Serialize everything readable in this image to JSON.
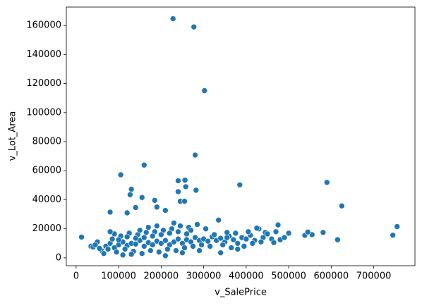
{
  "chart_data": {
    "type": "scatter",
    "xlabel": "v_SalePrice",
    "ylabel": "v_Lot_Area",
    "color": "#1f77b4",
    "xlim": [
      -23000,
      797000
    ],
    "ylim": [
      -5400,
      172700
    ],
    "xticks": [
      0,
      100000,
      200000,
      300000,
      400000,
      500000,
      600000,
      700000
    ],
    "yticks": [
      0,
      20000,
      40000,
      60000,
      80000,
      100000,
      120000,
      140000,
      160000
    ],
    "x": [
      228000,
      277000,
      302000,
      280000,
      160000,
      105000,
      590000,
      385000,
      256000,
      240000,
      258000,
      282000,
      240000,
      130000,
      127000,
      155000,
      185000,
      245000,
      255000,
      210000,
      140000,
      190000,
      625000,
      80000,
      120000,
      755000,
      745000,
      615000,
      581000,
      555000,
      538000,
      545000,
      500000,
      475000,
      470000,
      430000,
      445000,
      12789,
      35000,
      40000,
      60000,
      70000,
      80000,
      90000,
      100000,
      110000,
      120000,
      130000,
      140000,
      150000,
      160000,
      170000,
      180000,
      190000,
      200000,
      210000,
      220000,
      230000,
      240000,
      250000,
      260000,
      270000,
      280000,
      290000,
      300000,
      310000,
      320000,
      330000,
      340000,
      350000,
      360000,
      370000,
      380000,
      390000,
      400000,
      410000,
      420000,
      440000,
      460000,
      480000,
      50000,
      65000,
      75000,
      85000,
      95000,
      105000,
      115000,
      125000,
      135000,
      145000,
      155000,
      165000,
      175000,
      185000,
      195000,
      205000,
      215000,
      225000,
      235000,
      245000,
      255000,
      265000,
      275000,
      285000,
      295000,
      305000,
      315000,
      325000,
      335000,
      345000,
      355000,
      365000,
      375000,
      395000,
      405000,
      415000,
      425000,
      435000,
      450000,
      465000,
      490000,
      110000,
      130000,
      150000,
      170000,
      190000,
      210000,
      230000,
      250000,
      270000,
      290000,
      140000,
      160000,
      180000,
      200000,
      220000,
      240000,
      260000,
      120000,
      100000,
      90000,
      80000,
      45000,
      55000,
      340000,
      380000,
      355000
    ],
    "values": [
      164660,
      159000,
      115149,
      70761,
      63887,
      57200,
      51974,
      50271,
      53504,
      53107,
      49000,
      46589,
      45600,
      47280,
      43500,
      41600,
      39600,
      39000,
      39000,
      32668,
      34650,
      35000,
      35760,
      31500,
      31000,
      21535,
      15623,
      12500,
      17500,
      16000,
      15500,
      17800,
      17000,
      22700,
      18000,
      20000,
      17500,
      14300,
      8000,
      7500,
      5000,
      8000,
      10000,
      7000,
      9000,
      11000,
      8500,
      10000,
      9500,
      12000,
      8000,
      10500,
      9000,
      11500,
      10000,
      12000,
      9000,
      11000,
      13000,
      10000,
      12500,
      11000,
      14000,
      12000,
      13000,
      11500,
      14500,
      12000,
      13500,
      11000,
      15000,
      12500,
      10000,
      14000,
      13000,
      15500,
      12000,
      14000,
      13000,
      12500,
      11000,
      3000,
      6000,
      13000,
      4000,
      15000,
      6000,
      17000,
      4500,
      16000,
      3000,
      17500,
      5000,
      18000,
      4000,
      19000,
      6000,
      20000,
      5000,
      22000,
      7000,
      21000,
      8000,
      23000,
      9000,
      20000,
      8000,
      16000,
      26000,
      9000,
      14000,
      7000,
      17000,
      8000,
      18000,
      10000,
      20500,
      11000,
      16500,
      10500,
      14000,
      2000,
      2500,
      19000,
      21000,
      22000,
      1500,
      24000,
      3500,
      19000,
      5000,
      13500,
      14000,
      15000,
      16000,
      17000,
      18000,
      16500,
      14500,
      12500,
      16500,
      18000,
      9000,
      6500,
      3500,
      6000,
      17500
    ]
  }
}
